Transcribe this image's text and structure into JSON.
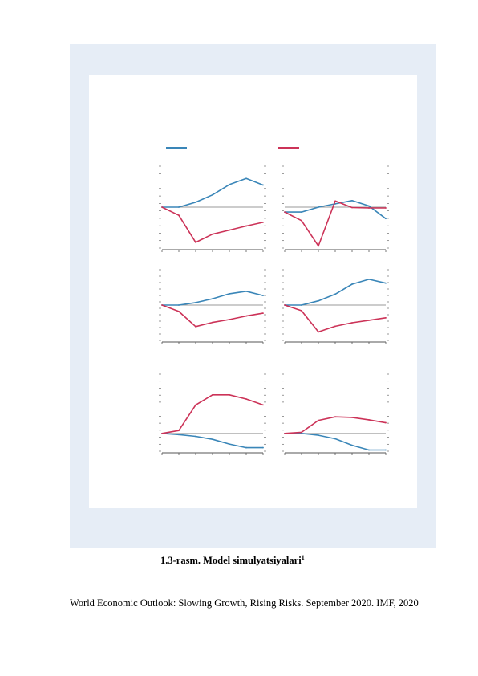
{
  "caption": {
    "label": "1.3-rasm. Model simulyatsiyalari",
    "footnote_marker": "1"
  },
  "source_note": "World Economic Outlook: Slowing Growth, Rising Risks. September 2020. IMF, 2020",
  "colors": {
    "frame_background": "#e6edf6",
    "series_blue": "#3a86b8",
    "series_red": "#cc3358",
    "zero_line": "#9a9a9a",
    "axis": "#555555"
  },
  "legend": {
    "entries": [
      {
        "color": "blue"
      },
      {
        "color": "red"
      }
    ]
  },
  "chart_data": [
    {
      "type": "line",
      "panel": "top-left",
      "x": [
        0,
        1,
        2,
        3,
        4,
        5,
        6
      ],
      "ylim": [
        -10,
        10
      ],
      "grid": false,
      "series": [
        {
          "color": "blue",
          "values": [
            0,
            0,
            1.2,
            3.0,
            5.5,
            7.0,
            5.4
          ]
        },
        {
          "color": "red",
          "values": [
            0,
            -2.0,
            -8.6,
            -6.6,
            -5.6,
            -4.6,
            -3.7
          ]
        }
      ]
    },
    {
      "type": "line",
      "panel": "top-right",
      "x": [
        0,
        1,
        2,
        3,
        4,
        5,
        6
      ],
      "ylim": [
        -10,
        10
      ],
      "grid": false,
      "series": [
        {
          "color": "blue",
          "values": [
            -1.2,
            -1.2,
            0,
            0.8,
            1.6,
            0.3,
            -2.8
          ]
        },
        {
          "color": "red",
          "values": [
            -1.2,
            -3.3,
            -9.5,
            1.5,
            -0.1,
            -0.2,
            -0.2
          ]
        }
      ]
    },
    {
      "type": "line",
      "panel": "middle-left",
      "x": [
        0,
        1,
        2,
        3,
        4,
        5,
        6
      ],
      "ylim": [
        -10,
        10
      ],
      "grid": false,
      "series": [
        {
          "color": "blue",
          "values": [
            0,
            0,
            0.7,
            1.8,
            3.2,
            3.9,
            2.7
          ]
        },
        {
          "color": "red",
          "values": [
            0,
            -1.8,
            -6.1,
            -4.9,
            -4.1,
            -3.1,
            -2.3
          ]
        }
      ]
    },
    {
      "type": "line",
      "panel": "middle-right",
      "x": [
        0,
        1,
        2,
        3,
        4,
        5,
        6
      ],
      "ylim": [
        -10,
        10
      ],
      "grid": false,
      "series": [
        {
          "color": "blue",
          "values": [
            0,
            0,
            1.2,
            3.1,
            5.9,
            7.3,
            6.2
          ]
        },
        {
          "color": "red",
          "values": [
            0,
            -1.6,
            -7.6,
            -6.0,
            -5.0,
            -4.3,
            -3.6
          ]
        }
      ]
    },
    {
      "type": "line",
      "panel": "bottom-left",
      "x": [
        0,
        1,
        2,
        3,
        4,
        5,
        6
      ],
      "ylim": [
        -3,
        10
      ],
      "grid": false,
      "series": [
        {
          "color": "blue",
          "values": [
            0,
            -0.2,
            -0.5,
            -1.0,
            -1.8,
            -2.4,
            -2.4
          ]
        },
        {
          "color": "red",
          "values": [
            0,
            0.5,
            4.8,
            6.5,
            6.5,
            5.8,
            4.8
          ]
        }
      ]
    },
    {
      "type": "line",
      "panel": "bottom-right",
      "x": [
        0,
        1,
        2,
        3,
        4,
        5,
        6
      ],
      "ylim": [
        -3,
        10
      ],
      "grid": false,
      "series": [
        {
          "color": "blue",
          "values": [
            0,
            0,
            -0.3,
            -0.9,
            -2.0,
            -2.8,
            -2.8
          ]
        },
        {
          "color": "red",
          "values": [
            0,
            0.2,
            2.2,
            2.8,
            2.7,
            2.3,
            1.8
          ]
        }
      ]
    }
  ]
}
